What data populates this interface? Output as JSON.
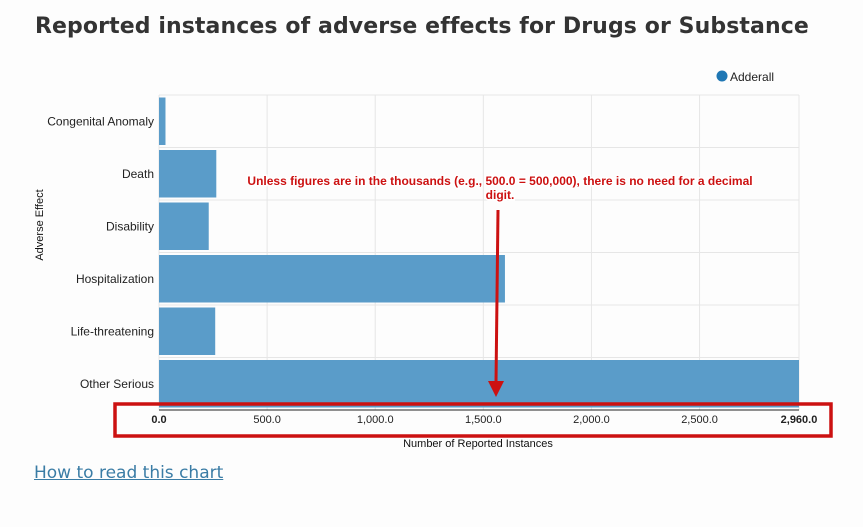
{
  "page": {
    "title": "Reported instances of adverse effects for Drugs or Substance",
    "help_link": "How to read this chart"
  },
  "legend": {
    "label": "Adderall"
  },
  "annotation": {
    "line1": "Unless figures are in the thousands (e.g., 500.0 = 500,000), there is no need for a decimal",
    "line2": "digit."
  },
  "colors": {
    "bar": "#5a9cc9",
    "legend_dot": "#1f77b4",
    "grid": "#e6e6e6",
    "annotation": "#cc1111"
  },
  "chart_data": {
    "type": "bar",
    "orientation": "horizontal",
    "categories": [
      "Congenital Anomaly",
      "Death",
      "Disability",
      "Hospitalization",
      "Life-threatening",
      "Other Serious"
    ],
    "series": [
      {
        "name": "Adderall",
        "values": [
          30,
          265,
          230,
          1600,
          260,
          2960
        ]
      }
    ],
    "xlabel": "Number of Reported Instances",
    "ylabel": "Adverse Effect",
    "xlim": [
      0,
      2960
    ],
    "x_ticks": [
      "0.0",
      "500.0",
      "1,000.0",
      "1,500.0",
      "2,000.0",
      "2,500.0",
      "2,960.0"
    ],
    "x_tick_values": [
      0,
      500,
      1000,
      1500,
      2000,
      2500,
      2960
    ],
    "bold_ticks": [
      0,
      6
    ],
    "grid": true,
    "legend_position": "top-right"
  }
}
